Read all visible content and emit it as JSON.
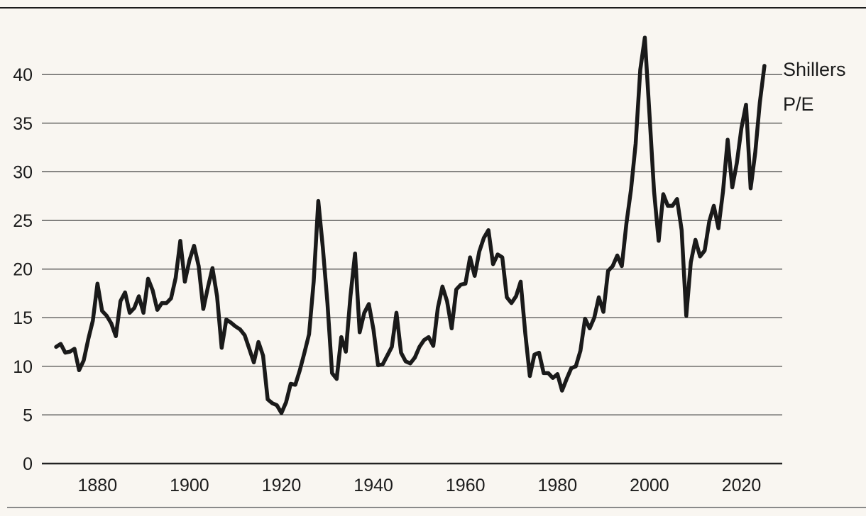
{
  "chart_data": {
    "type": "line",
    "title": "",
    "xlabel": "",
    "ylabel": "",
    "series_label": [
      "Shillers",
      "P/E"
    ],
    "ylim": [
      0,
      45
    ],
    "xlim": [
      1871,
      2025
    ],
    "grid": true,
    "y_ticks": [
      0,
      5,
      10,
      15,
      20,
      25,
      30,
      35,
      40
    ],
    "x_ticks": [
      1880,
      1900,
      1920,
      1940,
      1960,
      1980,
      2000,
      2020
    ],
    "colors": {
      "line": "#1a1a1a",
      "grid": "#3a3a3a",
      "background": "#f9f6f1"
    },
    "start_year": 1871,
    "values": [
      12.0,
      12.3,
      11.4,
      11.5,
      11.8,
      9.6,
      10.6,
      12.8,
      14.7,
      18.5,
      15.7,
      15.2,
      14.4,
      13.1,
      16.7,
      17.6,
      15.5,
      16.0,
      17.2,
      15.5,
      19.0,
      17.8,
      15.8,
      16.5,
      16.5,
      17.0,
      19.1,
      22.9,
      18.7,
      20.9,
      22.4,
      20.3,
      15.9,
      18.1,
      20.1,
      17.2,
      11.9,
      14.8,
      14.5,
      14.1,
      13.8,
      13.2,
      11.8,
      10.4,
      12.5,
      11.1,
      6.6,
      6.2,
      6.0,
      5.2,
      6.3,
      8.2,
      8.1,
      9.6,
      11.4,
      13.3,
      18.7,
      27.0,
      22.2,
      16.5,
      9.3,
      8.7,
      13.0,
      11.5,
      17.2,
      21.6,
      13.5,
      15.5,
      16.4,
      13.8,
      10.1,
      10.2,
      11.1,
      12.0,
      15.5,
      11.4,
      10.5,
      10.3,
      10.9,
      12.0,
      12.7,
      13.0,
      12.1,
      16.0,
      18.2,
      16.7,
      13.9,
      17.9,
      18.4,
      18.5,
      21.2,
      19.3,
      21.8,
      23.2,
      24.0,
      20.5,
      21.5,
      21.2,
      17.1,
      16.5,
      17.2,
      18.7,
      13.4,
      9.0,
      11.2,
      11.4,
      9.3,
      9.3,
      8.8,
      9.2,
      7.5,
      8.7,
      9.8,
      10.0,
      11.6,
      14.9,
      13.9,
      15.0,
      17.1,
      15.6,
      19.8,
      20.3,
      21.4,
      20.3,
      24.7,
      28.2,
      32.9,
      40.5,
      43.8,
      36.0,
      28.0,
      22.9,
      27.7,
      26.5,
      26.5,
      27.2,
      24.0,
      15.2,
      20.7,
      23.0,
      21.3,
      21.9,
      24.9,
      26.5,
      24.2,
      28.0,
      33.3,
      28.4,
      30.9,
      34.5,
      36.9,
      28.3,
      32.0,
      37.1,
      40.9
    ]
  }
}
